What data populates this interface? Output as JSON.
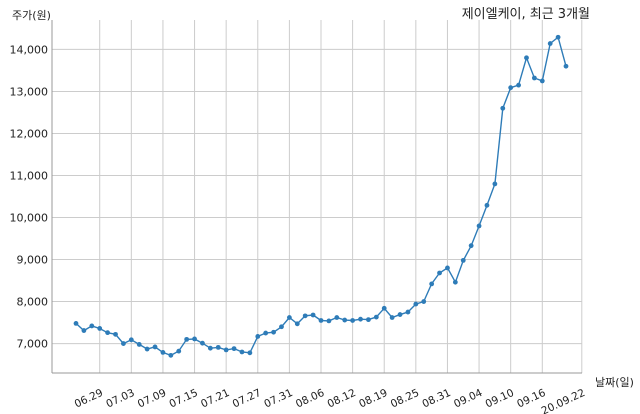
{
  "chart_data": {
    "type": "line",
    "title": "제이엘케이, 최근 3개월",
    "ylabel": "주가(원)",
    "xlabel": "날짜(일)",
    "ylim": [
      6300,
      14700
    ],
    "yticks": [
      7000,
      8000,
      9000,
      10000,
      11000,
      12000,
      13000,
      14000
    ],
    "ytick_labels": [
      "7,000",
      "8,000",
      "9,000",
      "10,000",
      "11,000",
      "12,000",
      "13,000",
      "14,000"
    ],
    "xtick_labels": [
      "06.29",
      "07.03",
      "07.09",
      "07.15",
      "07.21",
      "07.27",
      "07.31",
      "08.06",
      "08.12",
      "08.19",
      "08.25",
      "08.31",
      "09.04",
      "09.10",
      "09.16",
      "20.09.22"
    ],
    "xtick_index": [
      3,
      7,
      11,
      15,
      19,
      23,
      27,
      31,
      35,
      39,
      43,
      47,
      51,
      55,
      59,
      64
    ],
    "grid": true,
    "colors": {
      "line": "#2e7cb8",
      "grid": "#cccccc",
      "axis": "#999999"
    },
    "series": [
      {
        "values": [
          7480,
          7310,
          7420,
          7360,
          7260,
          7220,
          7000,
          7090,
          6980,
          6870,
          6920,
          6790,
          6720,
          6820,
          7100,
          7110,
          7010,
          6890,
          6910,
          6850,
          6880,
          6800,
          6780,
          7170,
          7250,
          7270,
          7400,
          7620,
          7470,
          7660,
          7680,
          7550,
          7540,
          7620,
          7560,
          7550,
          7580,
          7570,
          7630,
          7840,
          7620,
          7690,
          7750,
          7940,
          8000,
          8420,
          8680,
          8800,
          8460,
          8980,
          9330,
          9800,
          10290,
          10800,
          12600,
          13090,
          13150,
          13800,
          13320,
          13250,
          14140,
          14290,
          13600
        ]
      }
    ]
  }
}
